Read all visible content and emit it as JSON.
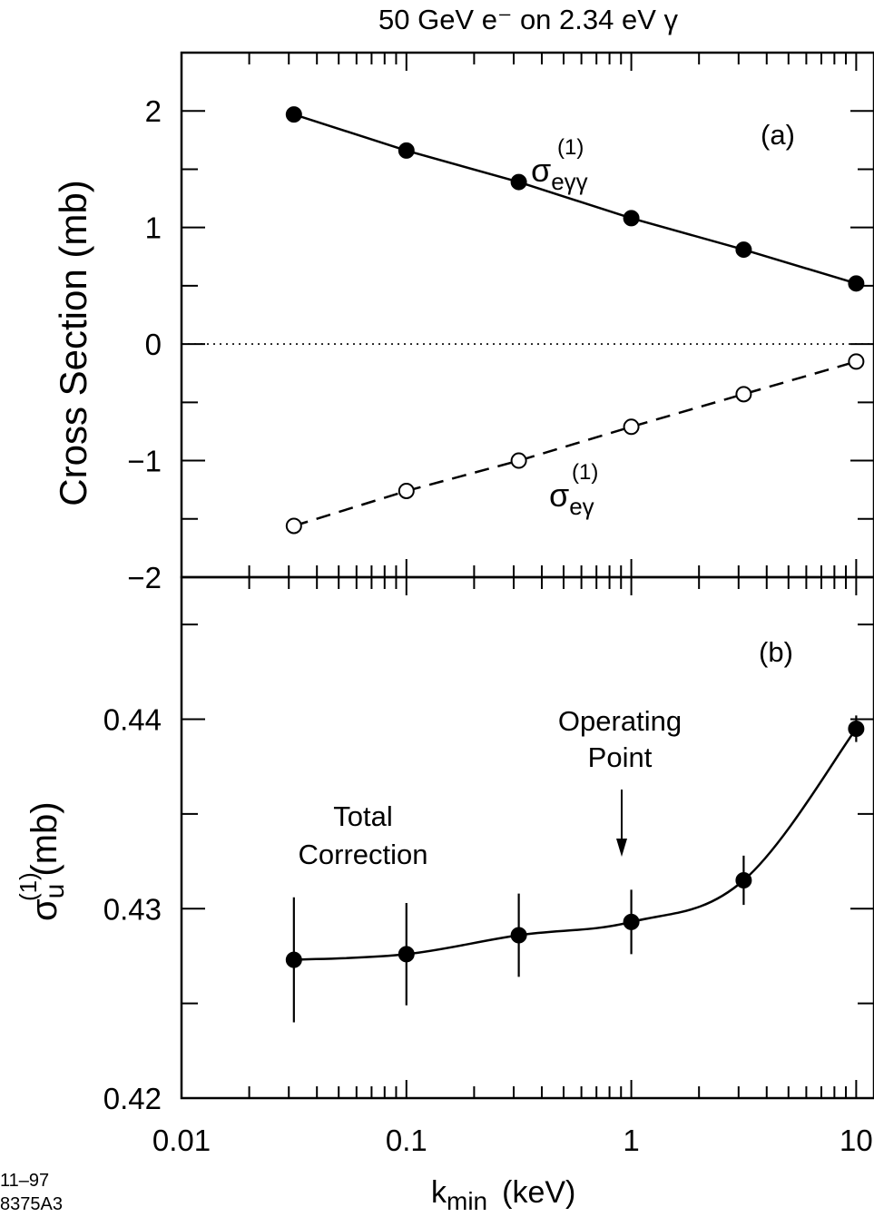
{
  "title": "50 GeV e⁻ on 2.34 eV γ",
  "figure_id": {
    "line1": "11–97",
    "line2": "8375A3"
  },
  "x_axis": {
    "label_main": "k",
    "label_sub": "min",
    "label_unit": "(keV)",
    "scale": "log",
    "range": [
      0.01,
      12
    ],
    "tick_labels": [
      "0.01",
      "0.1",
      "1",
      "10"
    ]
  },
  "panel_a": {
    "tag": "(a)",
    "y_label": "Cross Section  (mb)",
    "y_tick_labels": [
      "2",
      "1",
      "0",
      "−1",
      "−2"
    ]
  },
  "panel_b": {
    "tag": "(b)",
    "y_label_sigma": "σ",
    "y_label_sup": "(1)",
    "y_label_sub": "u",
    "y_label_unit": "(mb)",
    "y_tick_labels": [
      "0.44",
      "0.43",
      "0.42"
    ],
    "annotation_operating": [
      "Operating",
      "Point"
    ],
    "annotation_total": [
      "Total",
      "Correction"
    ]
  },
  "chart_data": [
    {
      "type": "line",
      "panel": "a",
      "xscale": "log",
      "xlim": [
        0.01,
        12
      ],
      "ylim": [
        -2,
        2.5
      ],
      "ylabel": "Cross Section  (mb)",
      "series": [
        {
          "name": "σ(1)eγγ",
          "label_sigma": "σ",
          "label_sup": "(1)",
          "label_sub": "eγγ",
          "marker": "filled-circle",
          "line": "solid",
          "x": [
            0.0316,
            0.1,
            0.316,
            1.0,
            3.16,
            10.0
          ],
          "y": [
            1.97,
            1.66,
            1.39,
            1.08,
            0.81,
            0.52
          ]
        },
        {
          "name": "σ(1)eγ",
          "label_sigma": "σ",
          "label_sup": "(1)",
          "label_sub": "eγ",
          "marker": "open-circle",
          "line": "dashed",
          "x": [
            0.0316,
            0.1,
            0.316,
            1.0,
            3.16,
            10.0
          ],
          "y": [
            -1.56,
            -1.26,
            -1.0,
            -0.71,
            -0.43,
            -0.15
          ]
        }
      ],
      "reference_line": {
        "y": 0,
        "style": "dotted"
      }
    },
    {
      "type": "line",
      "panel": "b",
      "xscale": "log",
      "xlim": [
        0.01,
        12
      ],
      "ylim": [
        0.42,
        0.4475
      ],
      "ylabel": "σ(1)u (mb)",
      "series": [
        {
          "name": "Total Correction",
          "marker": "filled-circle",
          "line": "smooth",
          "x": [
            0.0316,
            0.1,
            0.316,
            1.0,
            3.16,
            10.0
          ],
          "y": [
            0.4273,
            0.4276,
            0.4286,
            0.4293,
            0.4315,
            0.4395
          ],
          "yerr": [
            0.0033,
            0.0027,
            0.0022,
            0.0017,
            0.0013,
            0.0007
          ]
        }
      ]
    }
  ]
}
